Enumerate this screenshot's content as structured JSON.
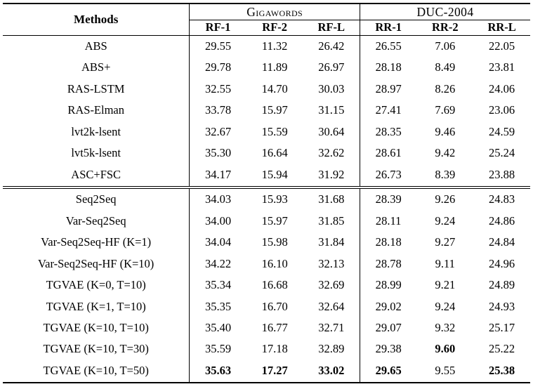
{
  "table": {
    "methods_header": "Methods",
    "groups": [
      {
        "name": "Gigawords",
        "subheaders": [
          "RF-1",
          "RF-2",
          "RF-L"
        ]
      },
      {
        "name": "DUC-2004",
        "subheaders": [
          "RR-1",
          "RR-2",
          "RR-L"
        ]
      }
    ],
    "sections": [
      {
        "rows": [
          {
            "method": "ABS",
            "values": [
              "29.55",
              "11.32",
              "26.42",
              "26.55",
              "7.06",
              "22.05"
            ]
          },
          {
            "method": "ABS+",
            "values": [
              "29.78",
              "11.89",
              "26.97",
              "28.18",
              "8.49",
              "23.81"
            ]
          },
          {
            "method": "RAS-LSTM",
            "values": [
              "32.55",
              "14.70",
              "30.03",
              "28.97",
              "8.26",
              "24.06"
            ]
          },
          {
            "method": "RAS-Elman",
            "values": [
              "33.78",
              "15.97",
              "31.15",
              "27.41",
              "7.69",
              "23.06"
            ]
          },
          {
            "method": "lvt2k-lsent",
            "values": [
              "32.67",
              "15.59",
              "30.64",
              "28.35",
              "9.46",
              "24.59"
            ]
          },
          {
            "method": "lvt5k-lsent",
            "values": [
              "35.30",
              "16.64",
              "32.62",
              "28.61",
              "9.42",
              "25.24"
            ]
          },
          {
            "method": "ASC+FSC",
            "values": [
              "34.17",
              "15.94",
              "31.92",
              "26.73",
              "8.39",
              "23.88"
            ]
          }
        ]
      },
      {
        "rows": [
          {
            "method": "Seq2Seq",
            "values": [
              "34.03",
              "15.93",
              "31.68",
              "28.39",
              "9.26",
              "24.83"
            ]
          },
          {
            "method": "Var-Seq2Seq",
            "values": [
              "34.00",
              "15.97",
              "31.85",
              "28.11",
              "9.24",
              "24.86"
            ]
          },
          {
            "method": "Var-Seq2Seq-HF (K=1)",
            "values": [
              "34.04",
              "15.98",
              "31.84",
              "28.18",
              "9.27",
              "24.84"
            ]
          },
          {
            "method": "Var-Seq2Seq-HF (K=10)",
            "values": [
              "34.22",
              "16.10",
              "32.13",
              "28.78",
              "9.11",
              "24.96"
            ]
          },
          {
            "method": "TGVAE (K=0, T=10)",
            "values": [
              "35.34",
              "16.68",
              "32.69",
              "28.99",
              "9.21",
              "24.89"
            ]
          },
          {
            "method": "TGVAE (K=1, T=10)",
            "values": [
              "35.35",
              "16.70",
              "32.64",
              "29.02",
              "9.24",
              "24.93"
            ]
          },
          {
            "method": "TGVAE (K=10, T=10)",
            "values": [
              "35.40",
              "16.77",
              "32.71",
              "29.07",
              "9.32",
              "25.17"
            ]
          },
          {
            "method": "TGVAE (K=10, T=30)",
            "values": [
              "35.59",
              "17.18",
              "32.89",
              "29.38",
              "9.60",
              "25.22"
            ],
            "bold_indices": [
              4
            ]
          },
          {
            "method": "TGVAE (K=10, T=50)",
            "values": [
              "35.63",
              "17.27",
              "33.02",
              "29.65",
              "9.55",
              "25.38"
            ],
            "bold_indices": [
              0,
              1,
              2,
              3,
              5
            ]
          }
        ]
      }
    ]
  }
}
